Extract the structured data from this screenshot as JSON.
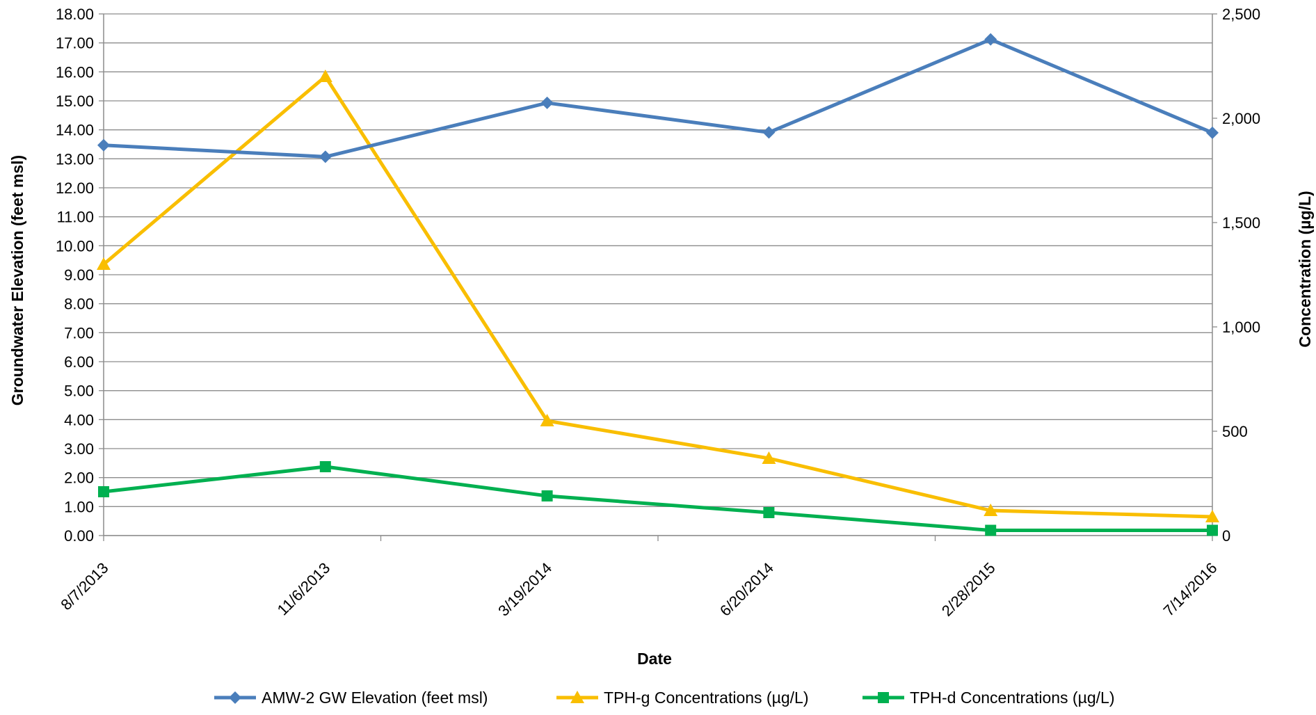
{
  "chart_data": {
    "type": "line",
    "title": "",
    "xlabel": "Date",
    "ylabel_left": "Groundwater Elevation (feet msl)",
    "ylabel_right": "Concentration (µg/L)",
    "categories": [
      "8/7/2013",
      "11/6/2013",
      "3/19/2014",
      "6/20/2014",
      "2/28/2015",
      "7/14/2016"
    ],
    "ylim_left": [
      0,
      18
    ],
    "ylim_right": [
      0,
      2500
    ],
    "yticks_left": [
      "0.00",
      "1.00",
      "2.00",
      "3.00",
      "4.00",
      "5.00",
      "6.00",
      "7.00",
      "8.00",
      "9.00",
      "10.00",
      "11.00",
      "12.00",
      "13.00",
      "14.00",
      "15.00",
      "16.00",
      "17.00",
      "18.00"
    ],
    "yticks_right": [
      "0",
      "500",
      "1,000",
      "1,500",
      "2,000",
      "2,500"
    ],
    "grid": true,
    "legend_position": "bottom",
    "series": [
      {
        "name": "AMW-2 GW Elevation (feet msl)",
        "axis": "left",
        "marker": "diamond",
        "color": "#4a7ebb",
        "values": [
          13.47,
          13.07,
          14.93,
          13.91,
          17.12,
          13.9
        ]
      },
      {
        "name": "TPH-g Concentrations (µg/L)",
        "axis": "right",
        "marker": "triangle",
        "color": "#f9be00",
        "values": [
          1300,
          2200,
          550,
          370,
          120,
          90
        ]
      },
      {
        "name": "TPH-d Concentrations (µg/L)",
        "axis": "right",
        "marker": "square",
        "color": "#00b050",
        "values": [
          210,
          330,
          190,
          110,
          25,
          25
        ]
      }
    ]
  }
}
